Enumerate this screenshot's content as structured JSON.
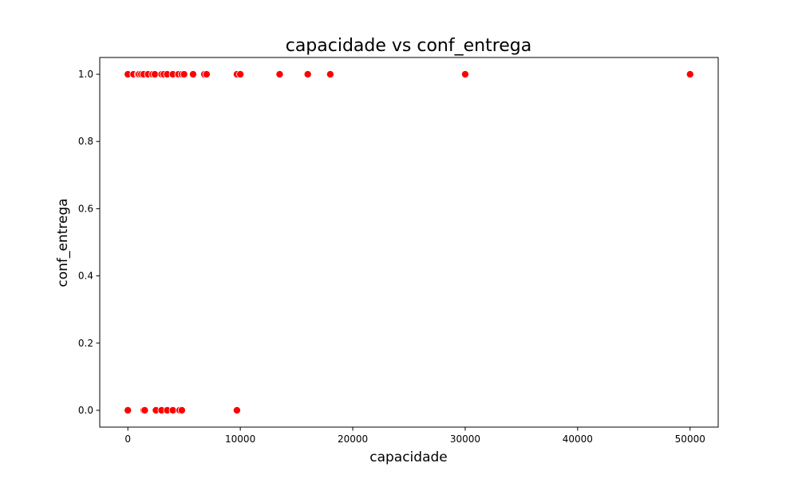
{
  "chart_data": {
    "type": "scatter",
    "title": "capacidade vs conf_entrega",
    "xlabel": "capacidade",
    "ylabel": "conf_entrega",
    "xlim": [
      -2500,
      52500
    ],
    "ylim": [
      -0.05,
      1.05
    ],
    "x_ticks": [
      0,
      10000,
      20000,
      30000,
      40000,
      50000
    ],
    "x_tick_labels": [
      "0",
      "10000",
      "20000",
      "30000",
      "40000",
      "50000"
    ],
    "y_ticks": [
      0.0,
      0.2,
      0.4,
      0.6,
      0.8,
      1.0
    ],
    "y_tick_labels": [
      "0.0",
      "0.2",
      "0.4",
      "0.6",
      "0.8",
      "1.0"
    ],
    "grid": false,
    "legend": "none",
    "marker_color": "#ff0000",
    "marker_edge_color": "#ffffff",
    "points": [
      {
        "x": 0,
        "y": 1
      },
      {
        "x": 500,
        "y": 1
      },
      {
        "x": 900,
        "y": 1
      },
      {
        "x": 1000,
        "y": 1
      },
      {
        "x": 1200,
        "y": 1
      },
      {
        "x": 1400,
        "y": 1
      },
      {
        "x": 1800,
        "y": 1
      },
      {
        "x": 2200,
        "y": 1
      },
      {
        "x": 2400,
        "y": 1
      },
      {
        "x": 3000,
        "y": 1
      },
      {
        "x": 3200,
        "y": 1
      },
      {
        "x": 3500,
        "y": 1
      },
      {
        "x": 4000,
        "y": 1
      },
      {
        "x": 4500,
        "y": 1
      },
      {
        "x": 4800,
        "y": 1
      },
      {
        "x": 5000,
        "y": 1
      },
      {
        "x": 5800,
        "y": 1
      },
      {
        "x": 6800,
        "y": 1
      },
      {
        "x": 7000,
        "y": 1
      },
      {
        "x": 9700,
        "y": 1
      },
      {
        "x": 10000,
        "y": 1
      },
      {
        "x": 13500,
        "y": 1
      },
      {
        "x": 16000,
        "y": 1
      },
      {
        "x": 18000,
        "y": 1
      },
      {
        "x": 30000,
        "y": 1
      },
      {
        "x": 50000,
        "y": 1
      },
      {
        "x": 0,
        "y": 0
      },
      {
        "x": 1400,
        "y": 0
      },
      {
        "x": 1500,
        "y": 0
      },
      {
        "x": 2500,
        "y": 0
      },
      {
        "x": 3000,
        "y": 0
      },
      {
        "x": 3500,
        "y": 0
      },
      {
        "x": 4000,
        "y": 0
      },
      {
        "x": 4600,
        "y": 0
      },
      {
        "x": 4800,
        "y": 0
      },
      {
        "x": 9700,
        "y": 0
      }
    ]
  }
}
